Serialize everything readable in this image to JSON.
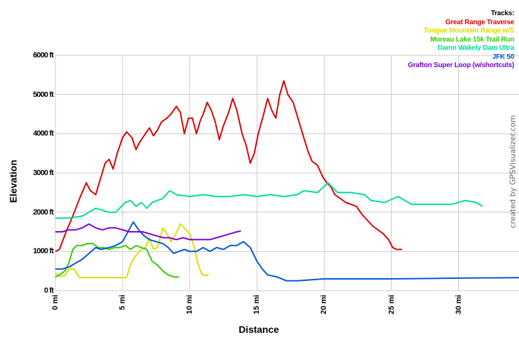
{
  "chart_data": {
    "type": "line",
    "title": "",
    "xlabel": "Distance",
    "ylabel": "Elevation",
    "xlim": [
      0,
      34.5
    ],
    "ylim": [
      0,
      6000
    ],
    "grid": true,
    "x_ticks": [
      "0 mi",
      "5 mi",
      "10 mi",
      "15 mi",
      "20 mi",
      "25 mi",
      "30 mi"
    ],
    "y_ticks": [
      "0 ft",
      "1000 ft",
      "2000 ft",
      "3000 ft",
      "4000 ft",
      "5000 ft",
      "6000 ft"
    ],
    "legend_title": "Tracks:",
    "legend_position": "top-right",
    "credit": "created by GPSVisualizer.com",
    "series": [
      {
        "name": "Great Range Traverse",
        "color": "#dd0000",
        "points": [
          [
            0,
            1000
          ],
          [
            0.3,
            1050
          ],
          [
            0.8,
            1500
          ],
          [
            1.3,
            1900
          ],
          [
            1.8,
            2350
          ],
          [
            2.3,
            2750
          ],
          [
            2.6,
            2550
          ],
          [
            3.0,
            2450
          ],
          [
            3.4,
            2900
          ],
          [
            3.7,
            3250
          ],
          [
            4.0,
            3350
          ],
          [
            4.3,
            3100
          ],
          [
            4.6,
            3500
          ],
          [
            5.0,
            3900
          ],
          [
            5.3,
            4050
          ],
          [
            5.7,
            3900
          ],
          [
            6.0,
            3600
          ],
          [
            6.3,
            3800
          ],
          [
            6.7,
            4000
          ],
          [
            7.0,
            4150
          ],
          [
            7.3,
            3950
          ],
          [
            7.6,
            4100
          ],
          [
            7.9,
            4300
          ],
          [
            8.3,
            4400
          ],
          [
            8.6,
            4500
          ],
          [
            9.0,
            4700
          ],
          [
            9.3,
            4550
          ],
          [
            9.6,
            4000
          ],
          [
            9.9,
            4400
          ],
          [
            10.2,
            4400
          ],
          [
            10.5,
            4000
          ],
          [
            10.8,
            4350
          ],
          [
            11.0,
            4500
          ],
          [
            11.3,
            4800
          ],
          [
            11.6,
            4600
          ],
          [
            11.9,
            4300
          ],
          [
            12.2,
            3850
          ],
          [
            12.5,
            4200
          ],
          [
            12.9,
            4550
          ],
          [
            13.2,
            4900
          ],
          [
            13.5,
            4600
          ],
          [
            13.9,
            4000
          ],
          [
            14.2,
            3700
          ],
          [
            14.5,
            3250
          ],
          [
            14.8,
            3500
          ],
          [
            15.1,
            4000
          ],
          [
            15.5,
            4500
          ],
          [
            15.8,
            4900
          ],
          [
            16.1,
            4600
          ],
          [
            16.4,
            4400
          ],
          [
            16.7,
            5000
          ],
          [
            17.0,
            5350
          ],
          [
            17.3,
            5000
          ],
          [
            17.7,
            4800
          ],
          [
            18.0,
            4450
          ],
          [
            18.4,
            4000
          ],
          [
            18.8,
            3550
          ],
          [
            19.1,
            3300
          ],
          [
            19.5,
            3200
          ],
          [
            19.9,
            2900
          ],
          [
            20.2,
            2750
          ],
          [
            20.5,
            2650
          ],
          [
            20.8,
            2450
          ],
          [
            21.2,
            2350
          ],
          [
            21.6,
            2250
          ],
          [
            22.0,
            2200
          ],
          [
            22.4,
            2150
          ],
          [
            22.8,
            1950
          ],
          [
            23.2,
            1800
          ],
          [
            23.6,
            1650
          ],
          [
            24.0,
            1550
          ],
          [
            24.4,
            1450
          ],
          [
            24.8,
            1300
          ],
          [
            25.1,
            1100
          ],
          [
            25.4,
            1050
          ],
          [
            25.8,
            1050
          ]
        ]
      },
      {
        "name": "Tongue Mountain Range w/S",
        "color": "#dddd00",
        "points": [
          [
            0,
            450
          ],
          [
            0.3,
            370
          ],
          [
            0.7,
            380
          ],
          [
            1.0,
            550
          ],
          [
            1.4,
            550
          ],
          [
            1.8,
            330
          ],
          [
            2.5,
            330
          ],
          [
            3.5,
            330
          ],
          [
            4.5,
            330
          ],
          [
            5.3,
            330
          ],
          [
            5.6,
            680
          ],
          [
            6.0,
            900
          ],
          [
            6.4,
            1050
          ],
          [
            6.7,
            1100
          ],
          [
            7.0,
            1350
          ],
          [
            7.3,
            1050
          ],
          [
            7.6,
            1100
          ],
          [
            8.0,
            1600
          ],
          [
            8.3,
            1450
          ],
          [
            8.6,
            1250
          ],
          [
            8.9,
            1400
          ],
          [
            9.3,
            1700
          ],
          [
            9.6,
            1600
          ],
          [
            10.0,
            1450
          ],
          [
            10.3,
            1150
          ],
          [
            10.6,
            700
          ],
          [
            10.9,
            420
          ],
          [
            11.2,
            380
          ],
          [
            11.4,
            420
          ]
        ]
      },
      {
        "name": "Moreau Lake 15k Trail Run",
        "color": "#33cc00",
        "points": [
          [
            0,
            350
          ],
          [
            0.3,
            400
          ],
          [
            0.7,
            500
          ],
          [
            1.0,
            700
          ],
          [
            1.3,
            1050
          ],
          [
            1.6,
            1150
          ],
          [
            2.0,
            1150
          ],
          [
            2.4,
            1200
          ],
          [
            2.8,
            1200
          ],
          [
            3.2,
            1100
          ],
          [
            3.6,
            1100
          ],
          [
            4.0,
            1050
          ],
          [
            4.4,
            1100
          ],
          [
            4.8,
            1100
          ],
          [
            5.2,
            1150
          ],
          [
            5.6,
            1050
          ],
          [
            6.0,
            1150
          ],
          [
            6.4,
            1100
          ],
          [
            6.8,
            1050
          ],
          [
            7.2,
            750
          ],
          [
            7.6,
            650
          ],
          [
            8.0,
            500
          ],
          [
            8.4,
            400
          ],
          [
            8.8,
            350
          ],
          [
            9.2,
            350
          ]
        ]
      },
      {
        "name": "Damn Wakely Dam Ultra",
        "color": "#00dd99",
        "points": [
          [
            0,
            1850
          ],
          [
            1.0,
            1850
          ],
          [
            2.0,
            1900
          ],
          [
            3.0,
            2100
          ],
          [
            4.0,
            2000
          ],
          [
            4.5,
            2000
          ],
          [
            5.2,
            2250
          ],
          [
            5.6,
            2300
          ],
          [
            6.0,
            2150
          ],
          [
            6.4,
            2250
          ],
          [
            6.8,
            2100
          ],
          [
            7.2,
            2250
          ],
          [
            8.0,
            2350
          ],
          [
            8.5,
            2550
          ],
          [
            9.0,
            2450
          ],
          [
            10.0,
            2400
          ],
          [
            11.0,
            2450
          ],
          [
            12.0,
            2400
          ],
          [
            13.0,
            2400
          ],
          [
            14.0,
            2450
          ],
          [
            15.0,
            2400
          ],
          [
            16.0,
            2450
          ],
          [
            17.0,
            2400
          ],
          [
            18.0,
            2450
          ],
          [
            18.5,
            2550
          ],
          [
            19.5,
            2500
          ],
          [
            20.3,
            2750
          ],
          [
            21.0,
            2500
          ],
          [
            22.0,
            2500
          ],
          [
            23.0,
            2450
          ],
          [
            23.5,
            2300
          ],
          [
            24.5,
            2250
          ],
          [
            25.5,
            2400
          ],
          [
            26.5,
            2200
          ],
          [
            27.5,
            2200
          ],
          [
            28.5,
            2200
          ],
          [
            29.5,
            2200
          ],
          [
            30.5,
            2300
          ],
          [
            31.3,
            2250
          ],
          [
            31.8,
            2150
          ]
        ]
      },
      {
        "name": "JFK 50",
        "color": "#0055dd",
        "points": [
          [
            0,
            550
          ],
          [
            0.5,
            550
          ],
          [
            1.0,
            600
          ],
          [
            1.5,
            700
          ],
          [
            2.0,
            800
          ],
          [
            2.5,
            950
          ],
          [
            3.0,
            1100
          ],
          [
            3.4,
            1050
          ],
          [
            4.0,
            1100
          ],
          [
            4.5,
            1150
          ],
          [
            5.0,
            1250
          ],
          [
            5.4,
            1500
          ],
          [
            5.8,
            1750
          ],
          [
            6.2,
            1550
          ],
          [
            6.6,
            1400
          ],
          [
            7.0,
            1300
          ],
          [
            7.5,
            1250
          ],
          [
            8.0,
            1200
          ],
          [
            8.4,
            1100
          ],
          [
            8.8,
            950
          ],
          [
            9.2,
            1000
          ],
          [
            9.6,
            1050
          ],
          [
            10.0,
            1000
          ],
          [
            10.5,
            1000
          ],
          [
            11.0,
            1100
          ],
          [
            11.5,
            1000
          ],
          [
            12.0,
            1100
          ],
          [
            12.5,
            1050
          ],
          [
            13.0,
            1150
          ],
          [
            13.5,
            1150
          ],
          [
            14.0,
            1250
          ],
          [
            14.5,
            1100
          ],
          [
            15.0,
            750
          ],
          [
            15.4,
            550
          ],
          [
            15.8,
            400
          ],
          [
            16.5,
            350
          ],
          [
            17.2,
            250
          ],
          [
            18.0,
            250
          ],
          [
            20.0,
            300
          ],
          [
            25.0,
            300
          ],
          [
            30.0,
            320
          ],
          [
            34.5,
            330
          ]
        ]
      },
      {
        "name": "Grafton Super Loop (w/shortcuts)",
        "color": "#7700dd",
        "points": [
          [
            0,
            1500
          ],
          [
            0.5,
            1500
          ],
          [
            1.0,
            1550
          ],
          [
            1.5,
            1550
          ],
          [
            2.0,
            1600
          ],
          [
            2.5,
            1700
          ],
          [
            3.0,
            1600
          ],
          [
            3.5,
            1550
          ],
          [
            4.0,
            1600
          ],
          [
            4.5,
            1600
          ],
          [
            5.0,
            1550
          ],
          [
            5.5,
            1500
          ],
          [
            6.0,
            1500
          ],
          [
            6.5,
            1500
          ],
          [
            7.0,
            1450
          ],
          [
            7.5,
            1400
          ],
          [
            8.0,
            1350
          ],
          [
            8.5,
            1350
          ],
          [
            9.0,
            1300
          ],
          [
            9.5,
            1350
          ],
          [
            10.0,
            1300
          ],
          [
            10.5,
            1300
          ],
          [
            11.0,
            1300
          ],
          [
            11.5,
            1300
          ],
          [
            12.0,
            1350
          ],
          [
            12.5,
            1400
          ],
          [
            13.0,
            1450
          ],
          [
            13.5,
            1500
          ],
          [
            13.8,
            1520
          ]
        ]
      }
    ]
  }
}
